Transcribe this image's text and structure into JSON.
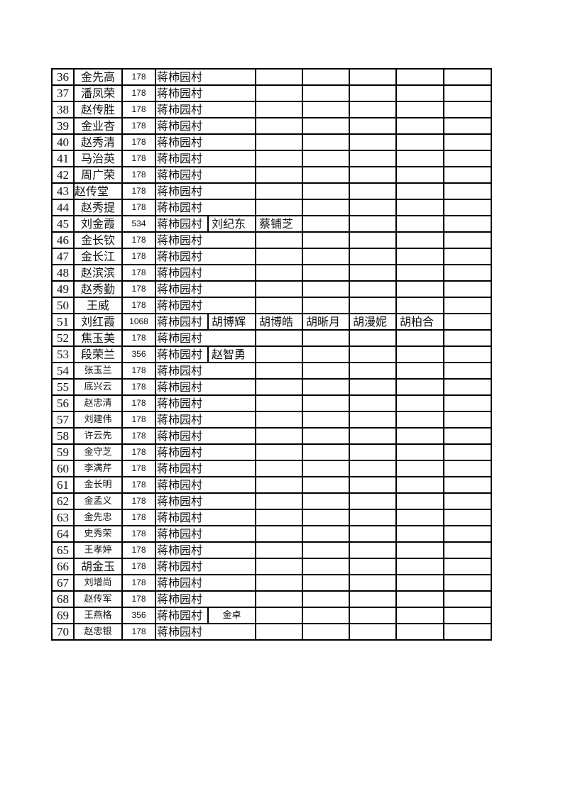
{
  "table": {
    "rows": [
      {
        "num": "36",
        "name": "金先高",
        "amount": "178",
        "village": "蒋柿园村",
        "extras": [
          "",
          "",
          "",
          "",
          "",
          ""
        ]
      },
      {
        "num": "37",
        "name": "潘凤荣",
        "amount": "178",
        "village": "蒋柿园村",
        "extras": [
          "",
          "",
          "",
          "",
          "",
          ""
        ]
      },
      {
        "num": "38",
        "name": "赵传胜",
        "amount": "178",
        "village": "蒋柿园村",
        "extras": [
          "",
          "",
          "",
          "",
          "",
          ""
        ]
      },
      {
        "num": "39",
        "name": "金业杏",
        "amount": "178",
        "village": "蒋柿园村",
        "extras": [
          "",
          "",
          "",
          "",
          "",
          ""
        ]
      },
      {
        "num": "40",
        "name": "赵秀清",
        "amount": "178",
        "village": "蒋柿园村",
        "extras": [
          "",
          "",
          "",
          "",
          "",
          ""
        ]
      },
      {
        "num": "41",
        "name": "马治英",
        "amount": "178",
        "village": "蒋柿园村",
        "extras": [
          "",
          "",
          "",
          "",
          "",
          ""
        ]
      },
      {
        "num": "42",
        "name": "周广荣",
        "amount": "178",
        "village": "蒋柿园村",
        "extras": [
          "",
          "",
          "",
          "",
          "",
          ""
        ]
      },
      {
        "num": "43",
        "name": "赵传堂",
        "amount": "178",
        "village": "蒋柿园村",
        "extras": [
          "",
          "",
          "",
          "",
          "",
          ""
        ]
      },
      {
        "num": "44",
        "name": "赵秀提",
        "amount": "178",
        "village": "蒋柿园村",
        "extras": [
          "",
          "",
          "",
          "",
          "",
          ""
        ]
      },
      {
        "num": "45",
        "name": "刘金霞",
        "amount": "534",
        "village": "蒋柿园村",
        "extras": [
          "刘纪东",
          "蔡铺芝",
          "",
          "",
          "",
          ""
        ]
      },
      {
        "num": "46",
        "name": "金长钦",
        "amount": "178",
        "village": "蒋柿园村",
        "extras": [
          "",
          "",
          "",
          "",
          "",
          ""
        ]
      },
      {
        "num": "47",
        "name": "金长江",
        "amount": "178",
        "village": "蒋柿园村",
        "extras": [
          "",
          "",
          "",
          "",
          "",
          ""
        ]
      },
      {
        "num": "48",
        "name": "赵滨滨",
        "amount": "178",
        "village": "蒋柿园村",
        "extras": [
          "",
          "",
          "",
          "",
          "",
          ""
        ]
      },
      {
        "num": "49",
        "name": "赵秀勤",
        "amount": "178",
        "village": "蒋柿园村",
        "extras": [
          "",
          "",
          "",
          "",
          "",
          ""
        ]
      },
      {
        "num": "50",
        "name": "王威",
        "amount": "178",
        "village": "蒋柿园村",
        "extras": [
          "",
          "",
          "",
          "",
          "",
          ""
        ]
      },
      {
        "num": "51",
        "name": "刘红霞",
        "amount": "1068",
        "village": "蒋柿园村",
        "extras": [
          "胡博辉",
          "胡博皓",
          "胡晰月",
          "胡漫妮",
          "胡柏合",
          ""
        ]
      },
      {
        "num": "52",
        "name": "焦玉美",
        "amount": "178",
        "village": "蒋柿园村",
        "extras": [
          "",
          "",
          "",
          "",
          "",
          ""
        ]
      },
      {
        "num": "53",
        "name": "段荣兰",
        "amount": "356",
        "village": "蒋柿园村",
        "extras": [
          "赵智勇",
          "",
          "",
          "",
          "",
          ""
        ]
      },
      {
        "num": "54",
        "name": "张玉兰",
        "amount": "178",
        "village": "蒋柿园村",
        "extras": [
          "",
          "",
          "",
          "",
          "",
          ""
        ]
      },
      {
        "num": "55",
        "name": "底兴云",
        "amount": "178",
        "village": "蒋柿园村",
        "extras": [
          "",
          "",
          "",
          "",
          "",
          ""
        ]
      },
      {
        "num": "56",
        "name": "赵忠清",
        "amount": "178",
        "village": "蒋柿园村",
        "extras": [
          "",
          "",
          "",
          "",
          "",
          ""
        ]
      },
      {
        "num": "57",
        "name": "刘建伟",
        "amount": "178",
        "village": "蒋柿园村",
        "extras": [
          "",
          "",
          "",
          "",
          "",
          ""
        ]
      },
      {
        "num": "58",
        "name": "许云先",
        "amount": "178",
        "village": "蒋柿园村",
        "extras": [
          "",
          "",
          "",
          "",
          "",
          ""
        ]
      },
      {
        "num": "59",
        "name": "金守芝",
        "amount": "178",
        "village": "蒋柿园村",
        "extras": [
          "",
          "",
          "",
          "",
          "",
          ""
        ]
      },
      {
        "num": "60",
        "name": "李满芹",
        "amount": "178",
        "village": "蒋柿园村",
        "extras": [
          "",
          "",
          "",
          "",
          "",
          ""
        ]
      },
      {
        "num": "61",
        "name": "金长明",
        "amount": "178",
        "village": "蒋柿园村",
        "extras": [
          "",
          "",
          "",
          "",
          "",
          ""
        ]
      },
      {
        "num": "62",
        "name": "金孟义",
        "amount": "178",
        "village": "蒋柿园村",
        "extras": [
          "",
          "",
          "",
          "",
          "",
          ""
        ]
      },
      {
        "num": "63",
        "name": "金先忠",
        "amount": "178",
        "village": "蒋柿园村",
        "extras": [
          "",
          "",
          "",
          "",
          "",
          ""
        ]
      },
      {
        "num": "64",
        "name": "史秀荣",
        "amount": "178",
        "village": "蒋柿园村",
        "extras": [
          "",
          "",
          "",
          "",
          "",
          ""
        ]
      },
      {
        "num": "65",
        "name": "王孝婷",
        "amount": "178",
        "village": "蒋柿园村",
        "extras": [
          "",
          "",
          "",
          "",
          "",
          ""
        ]
      },
      {
        "num": "66",
        "name": "胡金玉",
        "amount": "178",
        "village": "蒋柿园村",
        "extras": [
          "",
          "",
          "",
          "",
          "",
          ""
        ]
      },
      {
        "num": "67",
        "name": "刘增尚",
        "amount": "178",
        "village": "蒋柿园村",
        "extras": [
          "",
          "",
          "",
          "",
          "",
          ""
        ]
      },
      {
        "num": "68",
        "name": "赵传军",
        "amount": "178",
        "village": "蒋柿园村",
        "extras": [
          "",
          "",
          "",
          "",
          "",
          ""
        ]
      },
      {
        "num": "69",
        "name": "王燕格",
        "amount": "356",
        "village": "蒋柿园村",
        "extras": [
          "金卓",
          "",
          "",
          "",
          "",
          ""
        ]
      },
      {
        "num": "70",
        "name": "赵忠银",
        "amount": "178",
        "village": "蒋柿园村",
        "extras": [
          "",
          "",
          "",
          "",
          "",
          ""
        ]
      }
    ]
  }
}
